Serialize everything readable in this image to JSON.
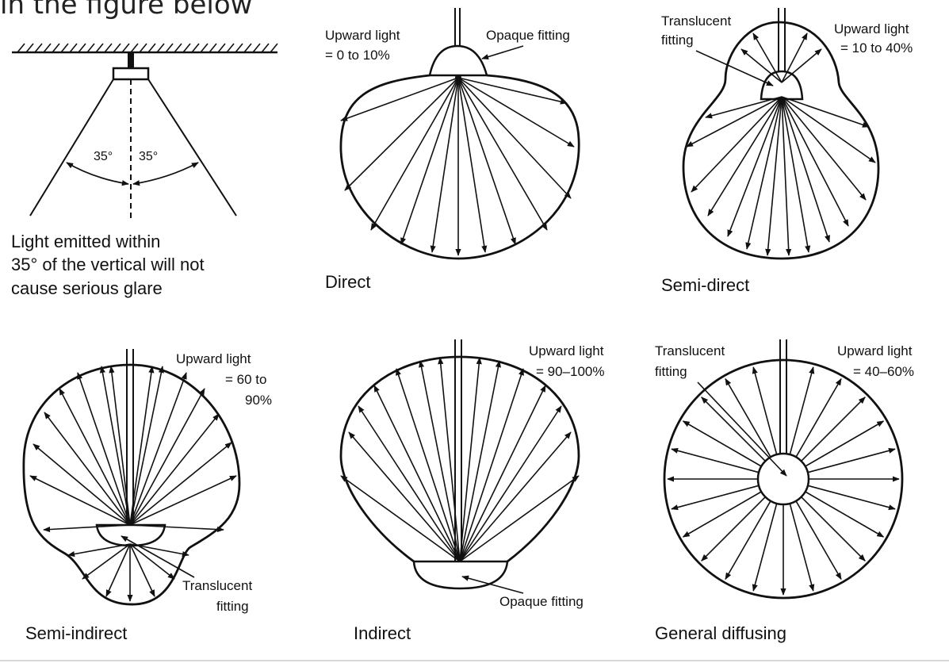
{
  "clipped_heading": "in the figure below",
  "panels": {
    "glare": {
      "angle_left": "35°",
      "angle_right": "35°",
      "caption": [
        "Light emitted within",
        "35° of the vertical will not",
        "cause serious glare"
      ]
    },
    "direct": {
      "caption": "Direct",
      "upward": [
        "Upward light",
        "= 0 to 10%"
      ],
      "fitting": "Opaque fitting"
    },
    "semi_direct": {
      "caption": "Semi-direct",
      "upward": [
        "Upward light",
        "= 10 to 40%"
      ],
      "fitting": [
        "Translucent",
        "fitting"
      ]
    },
    "semi_indirect": {
      "caption": "Semi-indirect",
      "upward": [
        "Upward light",
        "= 60 to",
        "90%"
      ],
      "fitting": [
        "Translucent",
        "fitting"
      ]
    },
    "indirect": {
      "caption": "Indirect",
      "upward": [
        "Upward light",
        "= 90–100%"
      ],
      "fitting": "Opaque fitting"
    },
    "general": {
      "caption": "General diffusing",
      "upward": [
        "Upward light",
        "= 40–60%"
      ],
      "fitting": [
        "Translucent",
        "fitting"
      ]
    }
  }
}
